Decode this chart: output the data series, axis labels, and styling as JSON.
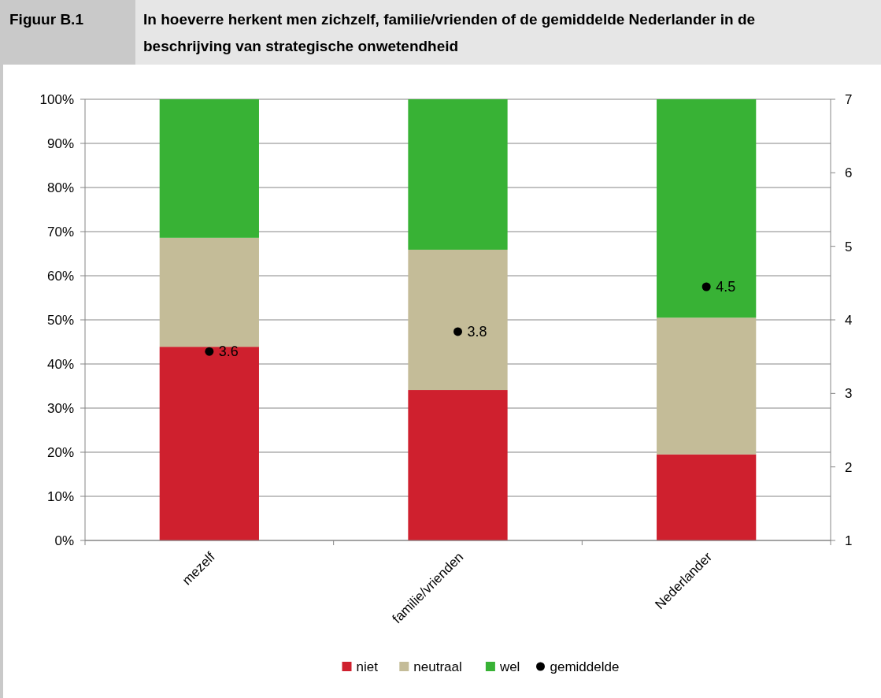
{
  "chart_data": {
    "type": "bar",
    "title": "In hoeverre herkent men zichzelf, familie/vrienden of de gemiddelde Nederlander in de beschrijving van strategische onwetendheid",
    "annotations": [
      "Figuur B.1"
    ],
    "categories": [
      "mezelf",
      "familie/vrienden",
      "Nederlander"
    ],
    "stacked": true,
    "series": [
      {
        "name": "niet",
        "color": "#cf202e",
        "values": [
          43.9,
          34.1,
          19.5
        ]
      },
      {
        "name": "neutraal",
        "color": "#c4bc98",
        "values": [
          24.7,
          31.8,
          31.0
        ]
      },
      {
        "name": "wel",
        "color": "#38b235",
        "values": [
          31.4,
          34.1,
          49.5
        ]
      },
      {
        "name": "gemiddelde",
        "type": "scatter",
        "axis": "y2",
        "color": "#000000",
        "marker": "circle",
        "values": [
          3.57,
          3.84,
          4.45
        ],
        "value_labels": [
          "3.6",
          "3.8",
          "4.5"
        ]
      }
    ],
    "ylim": [
      0,
      100
    ],
    "yticks": [
      {
        "value": 0,
        "label": "0%"
      },
      {
        "value": 10,
        "label": "10%"
      },
      {
        "value": 20,
        "label": "20%"
      },
      {
        "value": 30,
        "label": "30%"
      },
      {
        "value": 40,
        "label": "40%"
      },
      {
        "value": 50,
        "label": "50%"
      },
      {
        "value": 60,
        "label": "60%"
      },
      {
        "value": 70,
        "label": "70%"
      },
      {
        "value": 80,
        "label": "80%"
      },
      {
        "value": 90,
        "label": "90%"
      },
      {
        "value": 100,
        "label": "100%"
      }
    ],
    "y2lim": [
      1,
      7
    ],
    "y2ticks": [
      1,
      2,
      3,
      4,
      5,
      6,
      7
    ],
    "grid": "y",
    "legend": "bottom"
  }
}
